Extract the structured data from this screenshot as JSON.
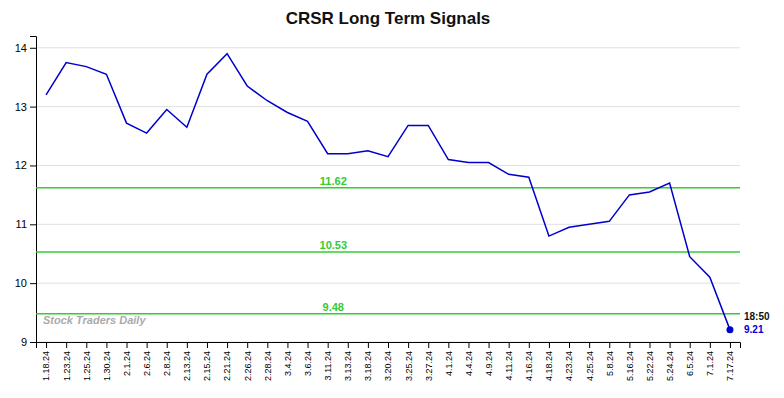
{
  "chart_data": {
    "type": "line",
    "title": "CRSR Long Term Signals",
    "categories": [
      "1.18.24",
      "1.23.24",
      "1.25.24",
      "1.30.24",
      "2.1.24",
      "2.6.24",
      "2.8.24",
      "2.13.24",
      "2.15.24",
      "2.21.24",
      "2.26.24",
      "2.28.24",
      "3.4.24",
      "3.6.24",
      "3.11.24",
      "3.13.24",
      "3.18.24",
      "3.20.24",
      "3.25.24",
      "3.27.24",
      "4.1.24",
      "4.4.24",
      "4.9.24",
      "4.11.24",
      "4.16.24",
      "4.18.24",
      "4.23.24",
      "4.25.24",
      "5.8.24",
      "5.16.24",
      "5.22.24",
      "5.24.24",
      "6.5.24",
      "7.1.24",
      "7.17.24"
    ],
    "values": [
      13.2,
      13.75,
      13.68,
      13.55,
      12.72,
      12.55,
      12.95,
      12.65,
      13.55,
      13.9,
      13.35,
      13.1,
      12.9,
      12.75,
      12.2,
      12.2,
      12.25,
      12.15,
      12.68,
      12.68,
      12.1,
      12.05,
      12.05,
      11.85,
      11.8,
      10.8,
      10.95,
      11.0,
      11.05,
      11.5,
      11.55,
      11.7,
      10.45,
      10.1,
      9.21
    ],
    "color": "#0000cc",
    "ylim": [
      9.0,
      14.2
    ],
    "yticks": [
      9,
      10,
      11,
      12,
      13,
      14
    ],
    "grid": true,
    "hlines": [
      {
        "value": 11.62,
        "label": "11.62",
        "color": "#33cc33"
      },
      {
        "value": 10.53,
        "label": "10.53",
        "color": "#33cc33"
      },
      {
        "value": 9.48,
        "label": "9.48",
        "color": "#33cc33"
      }
    ],
    "annotations": [
      {
        "text": "18:50"
      },
      {
        "text": "9.21",
        "color": "#0000cc"
      }
    ],
    "watermark": "Stock Traders Daily"
  }
}
